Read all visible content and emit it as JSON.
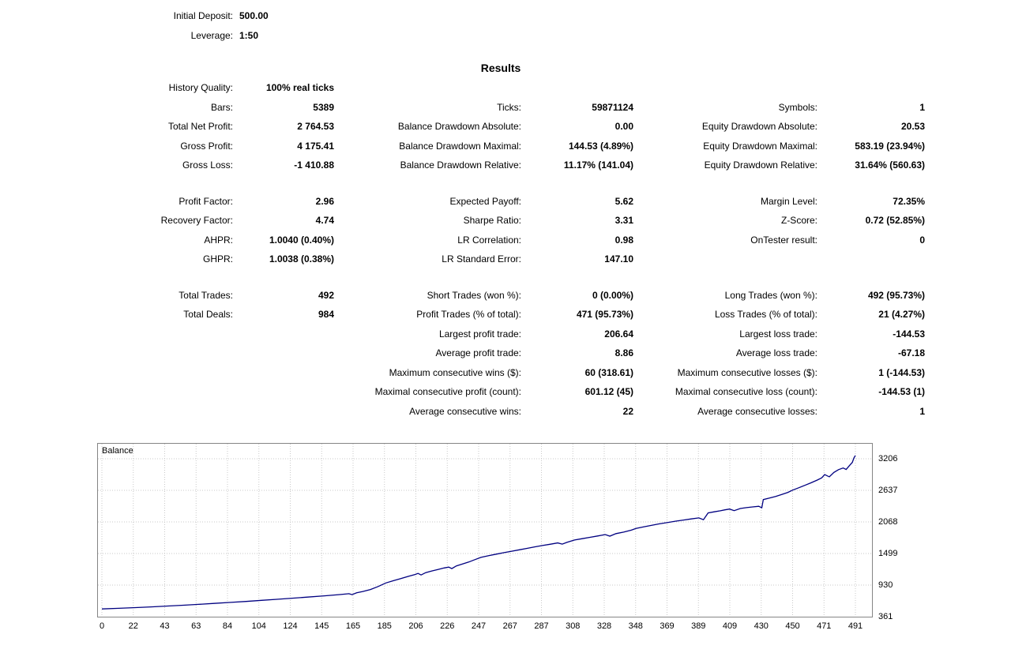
{
  "header": {
    "rows": [
      {
        "label": "Initial Deposit:",
        "value": "500.00"
      },
      {
        "label": "Leverage:",
        "value": "1:50"
      }
    ]
  },
  "results": {
    "title": "Results",
    "rows": [
      {
        "cells": [
          {
            "label": "History Quality:",
            "value": "100% real ticks"
          },
          null,
          null
        ]
      },
      {
        "cells": [
          {
            "label": "Bars:",
            "value": "5389"
          },
          {
            "label": "Ticks:",
            "value": "59871124"
          },
          {
            "label": "Symbols:",
            "value": "1"
          }
        ]
      },
      {
        "cells": [
          {
            "label": "Total Net Profit:",
            "value": "2 764.53"
          },
          {
            "label": "Balance Drawdown Absolute:",
            "value": "0.00"
          },
          {
            "label": "Equity Drawdown Absolute:",
            "value": "20.53"
          }
        ]
      },
      {
        "cells": [
          {
            "label": "Gross Profit:",
            "value": "4 175.41"
          },
          {
            "label": "Balance Drawdown Maximal:",
            "value": "144.53 (4.89%)"
          },
          {
            "label": "Equity Drawdown Maximal:",
            "value": "583.19 (23.94%)"
          }
        ]
      },
      {
        "cells": [
          {
            "label": "Gross Loss:",
            "value": "-1 410.88"
          },
          {
            "label": "Balance Drawdown Relative:",
            "value": "11.17% (141.04)"
          },
          {
            "label": "Equity Drawdown Relative:",
            "value": "31.64% (560.63)"
          }
        ]
      },
      {
        "spacer": true
      },
      {
        "cells": [
          {
            "label": "Profit Factor:",
            "value": "2.96"
          },
          {
            "label": "Expected Payoff:",
            "value": "5.62"
          },
          {
            "label": "Margin Level:",
            "value": "72.35%"
          }
        ]
      },
      {
        "cells": [
          {
            "label": "Recovery Factor:",
            "value": "4.74"
          },
          {
            "label": "Sharpe Ratio:",
            "value": "3.31"
          },
          {
            "label": "Z-Score:",
            "value": "0.72 (52.85%)"
          }
        ]
      },
      {
        "cells": [
          {
            "label": "AHPR:",
            "value": "1.0040 (0.40%)"
          },
          {
            "label": "LR Correlation:",
            "value": "0.98"
          },
          {
            "label": "OnTester result:",
            "value": "0"
          }
        ]
      },
      {
        "cells": [
          {
            "label": "GHPR:",
            "value": "1.0038 (0.38%)"
          },
          {
            "label": "LR Standard Error:",
            "value": "147.10"
          },
          null
        ]
      },
      {
        "spacer": true
      },
      {
        "cells": [
          {
            "label": "Total Trades:",
            "value": "492"
          },
          {
            "label": "Short Trades (won %):",
            "value": "0 (0.00%)"
          },
          {
            "label": "Long Trades (won %):",
            "value": "492 (95.73%)"
          }
        ]
      },
      {
        "cells": [
          {
            "label": "Total Deals:",
            "value": "984"
          },
          {
            "label": "Profit Trades (% of total):",
            "value": "471 (95.73%)"
          },
          {
            "label": "Loss Trades (% of total):",
            "value": "21 (4.27%)"
          }
        ]
      },
      {
        "cells": [
          null,
          {
            "label": "Largest profit trade:",
            "value": "206.64"
          },
          {
            "label": "Largest loss trade:",
            "value": "-144.53"
          }
        ]
      },
      {
        "cells": [
          null,
          {
            "label": "Average profit trade:",
            "value": "8.86"
          },
          {
            "label": "Average loss trade:",
            "value": "-67.18"
          }
        ]
      },
      {
        "cells": [
          null,
          {
            "label": "Maximum consecutive wins ($):",
            "value": "60 (318.61)"
          },
          {
            "label": "Maximum consecutive losses ($):",
            "value": "1 (-144.53)"
          }
        ]
      },
      {
        "cells": [
          null,
          {
            "label": "Maximal consecutive profit (count):",
            "value": "601.12 (45)"
          },
          {
            "label": "Maximal consecutive loss (count):",
            "value": "-144.53 (1)"
          }
        ]
      },
      {
        "cells": [
          null,
          {
            "label": "Average consecutive wins:",
            "value": "22"
          },
          {
            "label": "Average consecutive losses:",
            "value": "1"
          }
        ]
      }
    ]
  },
  "chart_data": {
    "type": "line",
    "title": "Balance",
    "x_ticks": [
      0,
      22,
      43,
      63,
      84,
      104,
      124,
      145,
      165,
      185,
      206,
      226,
      247,
      267,
      287,
      308,
      328,
      348,
      369,
      389,
      409,
      430,
      450,
      471,
      491
    ],
    "y_ticks": [
      361,
      930,
      1499,
      2068,
      2637,
      3206
    ],
    "xlim": [
      0,
      503
    ],
    "ylim": [
      361,
      3290
    ],
    "grid": "dotted",
    "grid_color": "#c9c9c9",
    "legend_position": "top-left",
    "series": [
      {
        "name": "Balance",
        "color": "#000080",
        "points": [
          [
            0,
            500
          ],
          [
            11,
            512
          ],
          [
            22,
            525
          ],
          [
            32,
            538
          ],
          [
            43,
            553
          ],
          [
            53,
            567
          ],
          [
            63,
            583
          ],
          [
            73,
            600
          ],
          [
            84,
            618
          ],
          [
            94,
            636
          ],
          [
            104,
            655
          ],
          [
            114,
            674
          ],
          [
            124,
            694
          ],
          [
            134,
            714
          ],
          [
            145,
            736
          ],
          [
            155,
            760
          ],
          [
            161,
            775
          ],
          [
            163,
            758
          ],
          [
            166,
            790
          ],
          [
            170,
            815
          ],
          [
            175,
            850
          ],
          [
            180,
            905
          ],
          [
            185,
            968
          ],
          [
            190,
            1010
          ],
          [
            195,
            1050
          ],
          [
            200,
            1090
          ],
          [
            204,
            1120
          ],
          [
            206,
            1140
          ],
          [
            208,
            1112
          ],
          [
            211,
            1155
          ],
          [
            215,
            1185
          ],
          [
            219,
            1212
          ],
          [
            223,
            1238
          ],
          [
            226,
            1255
          ],
          [
            228,
            1228
          ],
          [
            231,
            1275
          ],
          [
            235,
            1310
          ],
          [
            239,
            1345
          ],
          [
            243,
            1388
          ],
          [
            247,
            1430
          ],
          [
            252,
            1460
          ],
          [
            257,
            1488
          ],
          [
            262,
            1515
          ],
          [
            267,
            1540
          ],
          [
            272,
            1566
          ],
          [
            277,
            1592
          ],
          [
            282,
            1618
          ],
          [
            287,
            1642
          ],
          [
            292,
            1666
          ],
          [
            297,
            1690
          ],
          [
            300,
            1668
          ],
          [
            303,
            1700
          ],
          [
            308,
            1742
          ],
          [
            313,
            1766
          ],
          [
            318,
            1790
          ],
          [
            323,
            1815
          ],
          [
            328,
            1840
          ],
          [
            331,
            1812
          ],
          [
            335,
            1858
          ],
          [
            340,
            1885
          ],
          [
            345,
            1920
          ],
          [
            348,
            1950
          ],
          [
            353,
            1978
          ],
          [
            358,
            2005
          ],
          [
            363,
            2032
          ],
          [
            369,
            2060
          ],
          [
            374,
            2082
          ],
          [
            379,
            2102
          ],
          [
            384,
            2122
          ],
          [
            389,
            2140
          ],
          [
            392,
            2108
          ],
          [
            395,
            2230
          ],
          [
            399,
            2250
          ],
          [
            403,
            2268
          ],
          [
            406,
            2285
          ],
          [
            409,
            2300
          ],
          [
            412,
            2272
          ],
          [
            416,
            2310
          ],
          [
            420,
            2325
          ],
          [
            424,
            2338
          ],
          [
            428,
            2350
          ],
          [
            430,
            2322
          ],
          [
            431,
            2470
          ],
          [
            435,
            2498
          ],
          [
            439,
            2528
          ],
          [
            443,
            2562
          ],
          [
            447,
            2600
          ],
          [
            450,
            2640
          ],
          [
            454,
            2682
          ],
          [
            458,
            2726
          ],
          [
            462,
            2772
          ],
          [
            466,
            2820
          ],
          [
            469,
            2862
          ],
          [
            471,
            2920
          ],
          [
            474,
            2880
          ],
          [
            477,
            2960
          ],
          [
            480,
            3010
          ],
          [
            483,
            3040
          ],
          [
            485,
            3012
          ],
          [
            487,
            3080
          ],
          [
            489,
            3140
          ],
          [
            490,
            3220
          ],
          [
            491,
            3265
          ]
        ]
      }
    ]
  }
}
